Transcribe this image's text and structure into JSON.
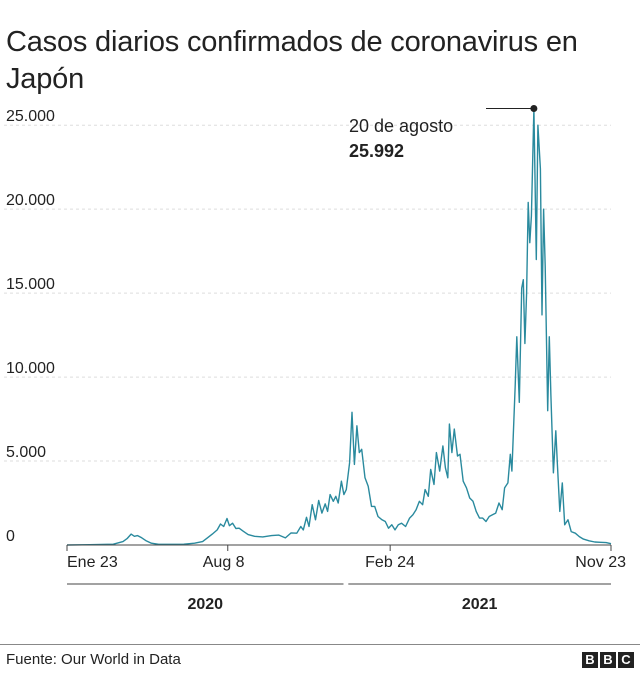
{
  "title": "Casos diarios confirmados de coronavirus en Japón",
  "source": "Fuente: Our World in Data",
  "logo": {
    "letters": [
      "B",
      "B",
      "C"
    ]
  },
  "annotation": {
    "date": "20 de agosto",
    "value": "25.992"
  },
  "colors": {
    "line": "#2a8a9e",
    "grid": "#dddddd",
    "axis": "#444444",
    "text": "#222222"
  },
  "chart_data": {
    "type": "line",
    "title": "Casos diarios confirmados de coronavirus en Japón",
    "xlabel": "",
    "ylabel": "",
    "ylim": [
      0,
      26500
    ],
    "grid": true,
    "y_ticks": [
      {
        "value": 0,
        "label": "0"
      },
      {
        "value": 5000,
        "label": "5.000"
      },
      {
        "value": 10000,
        "label": "10.000"
      },
      {
        "value": 15000,
        "label": "15.000"
      },
      {
        "value": 20000,
        "label": "20.000"
      },
      {
        "value": 25000,
        "label": "25.000"
      }
    ],
    "x_ticks": [
      {
        "date": "2020-01-23",
        "label": "Ene 23"
      },
      {
        "date": "2020-08-08",
        "label": "Aug 8"
      },
      {
        "date": "2021-02-24",
        "label": "Feb 24"
      },
      {
        "date": "2021-11-23",
        "label": "Nov 23"
      }
    ],
    "year_groups": [
      {
        "label": "2020",
        "start": "2020-01-23",
        "end": "2020-12-31"
      },
      {
        "label": "2021",
        "start": "2021-01-01",
        "end": "2021-11-23"
      }
    ],
    "series": [
      {
        "points": [
          [
            "2020-01-23",
            0
          ],
          [
            "2020-02-20",
            15
          ],
          [
            "2020-03-20",
            50
          ],
          [
            "2020-04-01",
            200
          ],
          [
            "2020-04-06",
            380
          ],
          [
            "2020-04-11",
            650
          ],
          [
            "2020-04-15",
            520
          ],
          [
            "2020-04-19",
            560
          ],
          [
            "2020-04-24",
            430
          ],
          [
            "2020-04-29",
            260
          ],
          [
            "2020-05-06",
            110
          ],
          [
            "2020-05-15",
            40
          ],
          [
            "2020-05-30",
            40
          ],
          [
            "2020-06-15",
            50
          ],
          [
            "2020-06-28",
            110
          ],
          [
            "2020-07-08",
            200
          ],
          [
            "2020-07-14",
            430
          ],
          [
            "2020-07-20",
            650
          ],
          [
            "2020-07-26",
            900
          ],
          [
            "2020-07-30",
            1250
          ],
          [
            "2020-08-03",
            1100
          ],
          [
            "2020-08-07",
            1580
          ],
          [
            "2020-08-10",
            1150
          ],
          [
            "2020-08-14",
            1300
          ],
          [
            "2020-08-18",
            980
          ],
          [
            "2020-08-22",
            1000
          ],
          [
            "2020-08-27",
            820
          ],
          [
            "2020-09-02",
            620
          ],
          [
            "2020-09-10",
            520
          ],
          [
            "2020-09-20",
            480
          ],
          [
            "2020-10-01",
            560
          ],
          [
            "2020-10-10",
            590
          ],
          [
            "2020-10-18",
            420
          ],
          [
            "2020-10-25",
            720
          ],
          [
            "2020-11-01",
            700
          ],
          [
            "2020-11-06",
            1100
          ],
          [
            "2020-11-09",
            900
          ],
          [
            "2020-11-13",
            1650
          ],
          [
            "2020-11-16",
            1100
          ],
          [
            "2020-11-20",
            2400
          ],
          [
            "2020-11-24",
            1500
          ],
          [
            "2020-11-28",
            2650
          ],
          [
            "2020-12-02",
            1900
          ],
          [
            "2020-12-06",
            2450
          ],
          [
            "2020-12-09",
            2000
          ],
          [
            "2020-12-12",
            3000
          ],
          [
            "2020-12-16",
            2600
          ],
          [
            "2020-12-19",
            2900
          ],
          [
            "2020-12-22",
            2500
          ],
          [
            "2020-12-26",
            3800
          ],
          [
            "2020-12-29",
            3000
          ],
          [
            "2021-01-01",
            3300
          ],
          [
            "2021-01-05",
            4900
          ],
          [
            "2021-01-08",
            7900
          ],
          [
            "2021-01-11",
            4800
          ],
          [
            "2021-01-14",
            7100
          ],
          [
            "2021-01-17",
            5500
          ],
          [
            "2021-01-20",
            5700
          ],
          [
            "2021-01-24",
            4000
          ],
          [
            "2021-01-28",
            3500
          ],
          [
            "2021-02-01",
            2300
          ],
          [
            "2021-02-05",
            2300
          ],
          [
            "2021-02-09",
            1700
          ],
          [
            "2021-02-14",
            1500
          ],
          [
            "2021-02-18",
            1400
          ],
          [
            "2021-02-22",
            1000
          ],
          [
            "2021-02-26",
            1200
          ],
          [
            "2021-03-02",
            900
          ],
          [
            "2021-03-06",
            1200
          ],
          [
            "2021-03-10",
            1300
          ],
          [
            "2021-03-15",
            1100
          ],
          [
            "2021-03-20",
            1600
          ],
          [
            "2021-03-24",
            1800
          ],
          [
            "2021-03-28",
            2100
          ],
          [
            "2021-04-01",
            2600
          ],
          [
            "2021-04-05",
            2400
          ],
          [
            "2021-04-08",
            3300
          ],
          [
            "2021-04-12",
            2900
          ],
          [
            "2021-04-15",
            4500
          ],
          [
            "2021-04-19",
            3600
          ],
          [
            "2021-04-22",
            5500
          ],
          [
            "2021-04-26",
            4400
          ],
          [
            "2021-04-30",
            5900
          ],
          [
            "2021-05-03",
            4600
          ],
          [
            "2021-05-06",
            4000
          ],
          [
            "2021-05-08",
            7200
          ],
          [
            "2021-05-11",
            5500
          ],
          [
            "2021-05-14",
            6900
          ],
          [
            "2021-05-18",
            5300
          ],
          [
            "2021-05-21",
            5400
          ],
          [
            "2021-05-25",
            3800
          ],
          [
            "2021-05-29",
            3400
          ],
          [
            "2021-06-02",
            2800
          ],
          [
            "2021-06-06",
            2600
          ],
          [
            "2021-06-10",
            2000
          ],
          [
            "2021-06-14",
            1600
          ],
          [
            "2021-06-18",
            1600
          ],
          [
            "2021-06-22",
            1400
          ],
          [
            "2021-06-26",
            1700
          ],
          [
            "2021-06-30",
            1800
          ],
          [
            "2021-07-04",
            1900
          ],
          [
            "2021-07-08",
            2500
          ],
          [
            "2021-07-12",
            2100
          ],
          [
            "2021-07-15",
            3400
          ],
          [
            "2021-07-19",
            3700
          ],
          [
            "2021-07-22",
            5400
          ],
          [
            "2021-07-24",
            4400
          ],
          [
            "2021-07-28",
            9500
          ],
          [
            "2021-07-30",
            12400
          ],
          [
            "2021-08-02",
            8500
          ],
          [
            "2021-08-05",
            15300
          ],
          [
            "2021-08-07",
            15800
          ],
          [
            "2021-08-09",
            12000
          ],
          [
            "2021-08-11",
            15000
          ],
          [
            "2021-08-13",
            20400
          ],
          [
            "2021-08-15",
            18000
          ],
          [
            "2021-08-17",
            19600
          ],
          [
            "2021-08-20",
            25992
          ],
          [
            "2021-08-23",
            17000
          ],
          [
            "2021-08-25",
            25000
          ],
          [
            "2021-08-28",
            22400
          ],
          [
            "2021-08-30",
            13700
          ],
          [
            "2021-09-01",
            20000
          ],
          [
            "2021-09-03",
            16600
          ],
          [
            "2021-09-06",
            8000
          ],
          [
            "2021-09-08",
            12400
          ],
          [
            "2021-09-10",
            8900
          ],
          [
            "2021-09-13",
            4300
          ],
          [
            "2021-09-16",
            6800
          ],
          [
            "2021-09-18",
            4800
          ],
          [
            "2021-09-21",
            2000
          ],
          [
            "2021-09-24",
            3700
          ],
          [
            "2021-09-27",
            1200
          ],
          [
            "2021-10-01",
            1500
          ],
          [
            "2021-10-05",
            800
          ],
          [
            "2021-10-10",
            700
          ],
          [
            "2021-10-15",
            500
          ],
          [
            "2021-10-20",
            350
          ],
          [
            "2021-10-27",
            250
          ],
          [
            "2021-11-03",
            180
          ],
          [
            "2021-11-10",
            160
          ],
          [
            "2021-11-17",
            140
          ],
          [
            "2021-11-23",
            80
          ]
        ]
      }
    ]
  }
}
